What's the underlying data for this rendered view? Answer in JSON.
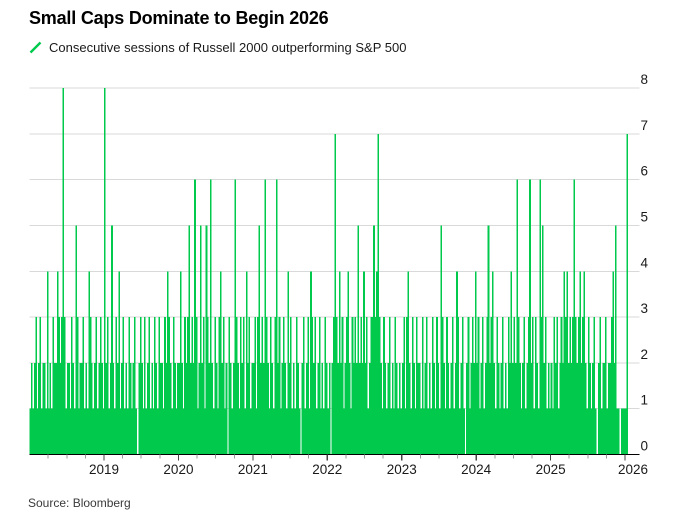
{
  "title": "Small Caps Dominate to Begin 2026",
  "legend": {
    "label": "Consecutive sessions of Russell 2000 outperforming S&P 500"
  },
  "source": "Source: Bloomberg",
  "colors": {
    "bar": "#00c94c",
    "grid": "#d9d9d9",
    "axis": "#000000",
    "text": "#1a1a1a",
    "tick_major": "#444444",
    "tick_minor": "#999999"
  },
  "chart_data": {
    "type": "bar",
    "title": "Small Caps Dominate to Begin 2026",
    "series_label": "Consecutive sessions of Russell 2000 outperforming S&P 500",
    "ylabel": "",
    "xlabel": "",
    "ylim": [
      0,
      8
    ],
    "grid": "horizontal",
    "y_axis_side": "right",
    "y_ticks": [
      0,
      1,
      2,
      3,
      4,
      5,
      6,
      7,
      8
    ],
    "x_tick_years": [
      2019,
      2020,
      2021,
      2022,
      2023,
      2024,
      2025,
      2026
    ],
    "x_minor_tick_interval_years": 0.25,
    "x_start_year": 2018.0,
    "x_end_year": 2026.04,
    "resolution": "weekly_max_streak",
    "values": [
      1,
      2,
      1,
      2,
      3,
      1,
      2,
      3,
      1,
      2,
      2,
      1,
      4,
      1,
      2,
      1,
      3,
      2,
      2,
      4,
      3,
      2,
      3,
      8,
      3,
      1,
      2,
      2,
      1,
      3,
      2,
      1,
      5,
      3,
      1,
      2,
      2,
      3,
      1,
      2,
      1,
      4,
      3,
      2,
      1,
      2,
      3,
      1,
      2,
      3,
      2,
      1,
      8,
      2,
      3,
      1,
      2,
      5,
      2,
      1,
      3,
      2,
      4,
      1,
      2,
      3,
      1,
      2,
      1,
      3,
      2,
      1,
      2,
      3,
      1,
      0,
      2,
      3,
      2,
      1,
      3,
      1,
      2,
      3,
      1,
      2,
      1,
      3,
      2,
      1,
      3,
      2,
      2,
      1,
      3,
      2,
      4,
      3,
      2,
      1,
      3,
      2,
      1,
      2,
      2,
      4,
      2,
      1,
      3,
      2,
      3,
      5,
      2,
      3,
      2,
      6,
      3,
      1,
      2,
      5,
      2,
      3,
      1,
      5,
      3,
      2,
      6,
      2,
      1,
      3,
      2,
      1,
      3,
      4,
      2,
      3,
      1,
      2,
      0,
      3,
      2,
      1,
      2,
      6,
      3,
      2,
      1,
      3,
      2,
      3,
      1,
      4,
      2,
      3,
      1,
      2,
      2,
      3,
      1,
      3,
      5,
      2,
      3,
      2,
      6,
      3,
      2,
      1,
      3,
      2,
      1,
      3,
      6,
      2,
      3,
      1,
      2,
      3,
      2,
      1,
      4,
      2,
      3,
      1,
      2,
      1,
      3,
      2,
      1,
      0,
      2,
      3,
      1,
      2,
      3,
      1,
      4,
      3,
      2,
      3,
      1,
      2,
      3,
      1,
      2,
      1,
      3,
      2,
      1,
      2,
      0,
      2,
      3,
      7,
      3,
      2,
      4,
      2,
      3,
      1,
      2,
      3,
      4,
      2,
      1,
      3,
      2,
      3,
      2,
      5,
      2,
      3,
      2,
      4,
      2,
      3,
      1,
      2,
      3,
      3,
      5,
      3,
      4,
      7,
      3,
      2,
      1,
      3,
      2,
      1,
      2,
      3,
      1,
      2,
      1,
      3,
      2,
      1,
      2,
      1,
      2,
      3,
      1,
      3,
      4,
      2,
      1,
      3,
      2,
      1,
      3,
      2,
      2,
      1,
      3,
      1,
      2,
      3,
      1,
      2,
      1,
      3,
      2,
      1,
      3,
      2,
      1,
      5,
      3,
      2,
      1,
      3,
      2,
      1,
      2,
      3,
      1,
      2,
      4,
      3,
      1,
      2,
      3,
      1,
      0,
      2,
      3,
      1,
      2,
      3,
      2,
      4,
      2,
      3,
      1,
      2,
      3,
      1,
      2,
      3,
      5,
      2,
      3,
      4,
      2,
      1,
      3,
      2,
      1,
      2,
      3,
      1,
      2,
      1,
      3,
      2,
      4,
      2,
      3,
      2,
      6,
      3,
      2,
      1,
      2,
      3,
      1,
      2,
      3,
      6,
      2,
      3,
      1,
      3,
      2,
      1,
      6,
      3,
      5,
      2,
      3,
      1,
      2,
      1,
      2,
      1,
      3,
      2,
      3,
      1,
      2,
      3,
      2,
      4,
      3,
      4,
      2,
      3,
      2,
      3,
      6,
      3,
      2,
      3,
      4,
      2,
      3,
      4,
      2,
      1,
      3,
      2,
      1,
      2,
      3,
      1,
      0,
      2,
      3,
      1,
      2,
      2,
      3,
      1,
      2,
      2,
      3,
      4,
      2,
      5,
      1,
      1,
      0,
      1,
      1,
      1,
      1,
      7
    ]
  }
}
